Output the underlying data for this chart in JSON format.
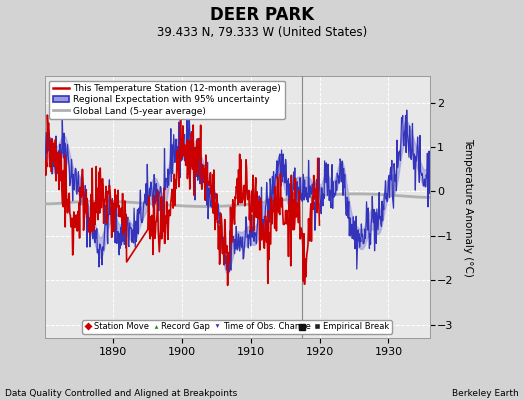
{
  "title": "DEER PARK",
  "subtitle": "39.433 N, 79.333 W (United States)",
  "xlabel_left": "Data Quality Controlled and Aligned at Breakpoints",
  "xlabel_right": "Berkeley Earth",
  "ylabel": "Temperature Anomaly (°C)",
  "xlim": [
    1880,
    1936
  ],
  "ylim": [
    -3.3,
    2.6
  ],
  "yticks": [
    -3,
    -2,
    -1,
    0,
    1,
    2
  ],
  "xticks": [
    1890,
    1900,
    1910,
    1920,
    1930
  ],
  "bg_color": "#d3d3d3",
  "plot_bg_color": "#e8e8e8",
  "grid_color": "#ffffff",
  "empirical_break_x": 1917.5,
  "empirical_break_y": -3.05,
  "vertical_line_x": 1917.5,
  "regional_color": "#3333bb",
  "regional_fill_color": "#9999dd",
  "station_color": "#cc0000",
  "global_color": "#b0b0b0",
  "legend1_items": [
    {
      "label": "This Temperature Station (12-month average)",
      "color": "#cc0000",
      "lw": 2
    },
    {
      "label": "Regional Expectation with 95% uncertainty",
      "color": "#3333bb",
      "lw": 2
    },
    {
      "label": "Global Land (5-year average)",
      "color": "#b0b0b0",
      "lw": 3
    }
  ],
  "legend2_items": [
    {
      "label": "Station Move",
      "marker": "D",
      "color": "#cc0000"
    },
    {
      "label": "Record Gap",
      "marker": "^",
      "color": "#228B22"
    },
    {
      "label": "Time of Obs. Change",
      "marker": "v",
      "color": "#3333bb"
    },
    {
      "label": "Empirical Break",
      "marker": "s",
      "color": "#222222"
    }
  ],
  "seed": 42
}
